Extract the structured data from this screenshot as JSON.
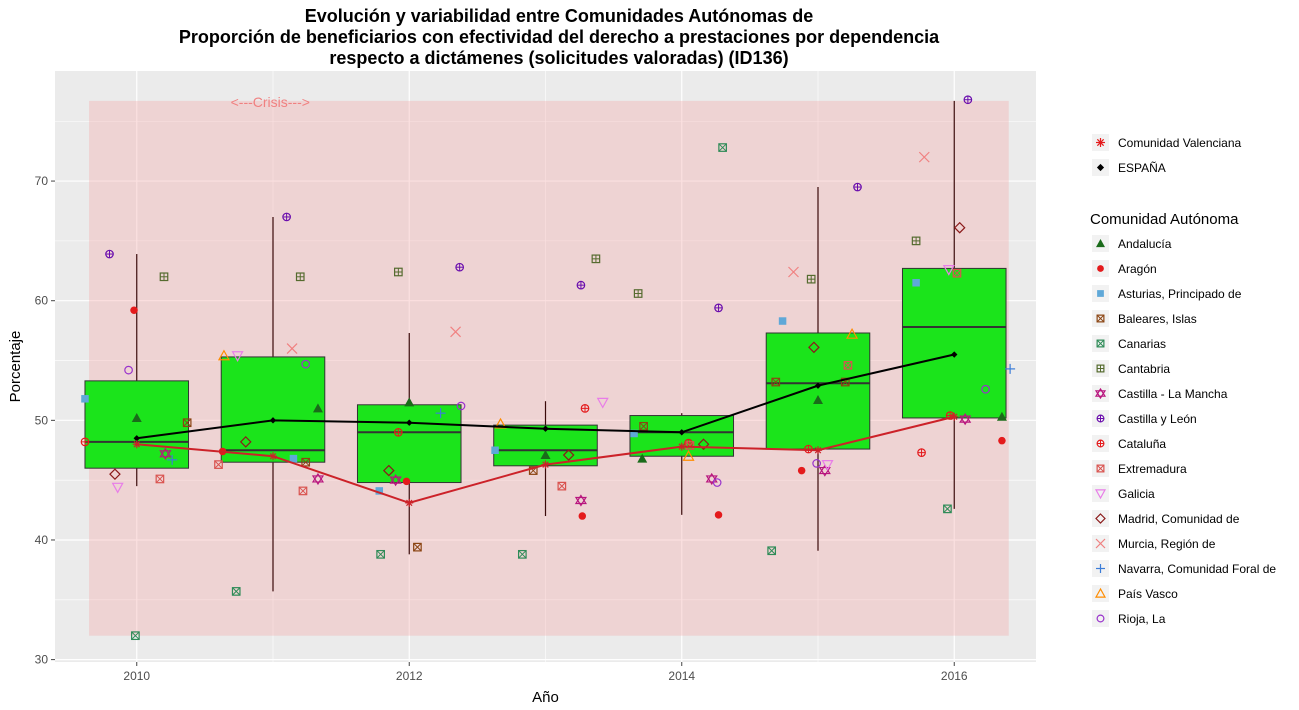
{
  "chart_data": {
    "type": "boxplot",
    "title": [
      "Evolución y variabilidad entre Comunidades Autónomas de",
      "Proporción de beneficiarios con efectividad del derecho a prestaciones por dependencia",
      "respecto a dictámenes (solicitudes valoradas) (ID136)"
    ],
    "xlabel": "Año",
    "ylabel": "Porcentaje",
    "xlim": [
      2009.4,
      2016.6
    ],
    "ylim": [
      29.8,
      79.2
    ],
    "x_ticks": [
      2010,
      2012,
      2014,
      2016
    ],
    "y_ticks": [
      30,
      40,
      50,
      60,
      70
    ],
    "grid": true,
    "annotation": {
      "text": "<---Crisis--->",
      "band_x": [
        2009.65,
        2016.4
      ],
      "band_y": [
        32,
        76.7
      ],
      "color": "#F08080"
    },
    "legend_position": "right",
    "legend_overlay_title": "",
    "legend_overlay": [
      {
        "name": "Comunidad Valenciana",
        "shape": "star",
        "color": "#e41a1c"
      },
      {
        "name": "ESPAÑA",
        "shape": "diamond-filled",
        "color": "#000000"
      }
    ],
    "legend_title": "Comunidad Autónoma",
    "boxes": [
      {
        "year": 2010,
        "min": 44.5,
        "q1": 46.0,
        "median": 48.2,
        "q3": 53.3,
        "max": 63.9
      },
      {
        "year": 2011,
        "min": 35.7,
        "q1": 46.5,
        "median": 47.5,
        "q3": 55.3,
        "max": 67.0
      },
      {
        "year": 2012,
        "min": 38.8,
        "q1": 44.8,
        "median": 49.0,
        "q3": 51.3,
        "max": 57.3
      },
      {
        "year": 2013,
        "min": 42.0,
        "q1": 46.2,
        "median": 47.5,
        "q3": 49.6,
        "max": 51.6
      },
      {
        "year": 2014,
        "min": 42.1,
        "q1": 47.0,
        "median": 49.0,
        "q3": 50.4,
        "max": 50.6
      },
      {
        "year": 2015,
        "min": 39.1,
        "q1": 47.6,
        "median": 53.1,
        "q3": 57.3,
        "max": 69.5
      },
      {
        "year": 2016,
        "min": 42.6,
        "q1": 50.2,
        "median": 57.8,
        "q3": 62.7,
        "max": 76.7
      }
    ],
    "line_series": [
      {
        "name": "ESPAÑA",
        "color": "#000000",
        "x": [
          2010,
          2011,
          2012,
          2013,
          2014,
          2015,
          2016
        ],
        "y": [
          48.5,
          50.0,
          49.8,
          49.3,
          49.0,
          52.9,
          55.5
        ]
      },
      {
        "name": "Comunidad Valenciana",
        "color": "#cc2229",
        "x": [
          2010,
          2011,
          2012,
          2013,
          2014,
          2015,
          2016
        ],
        "y": [
          48.0,
          47.0,
          43.1,
          46.3,
          47.8,
          47.5,
          50.3
        ]
      }
    ],
    "series": [
      {
        "name": "Andalucía",
        "shape": "triangle-filled",
        "color": "#1a6b1a",
        "points": [
          [
            2010,
            50.2
          ],
          [
            2011.33,
            51.0
          ],
          [
            2012,
            51.5
          ],
          [
            2013,
            47.1
          ],
          [
            2013.71,
            46.8
          ],
          [
            2015,
            51.7
          ],
          [
            2016.35,
            50.3
          ]
        ]
      },
      {
        "name": "Aragón",
        "shape": "circle-filled",
        "color": "#e41a1c",
        "points": [
          [
            2009.98,
            59.2
          ],
          [
            2010.63,
            47.4
          ],
          [
            2011.98,
            44.9
          ],
          [
            2013.27,
            42.0
          ],
          [
            2014.27,
            42.1
          ],
          [
            2014.88,
            45.8
          ],
          [
            2016.35,
            48.3
          ]
        ]
      },
      {
        "name": "Asturias, Principado de",
        "shape": "square-filled",
        "color": "#5fa8d8",
        "points": [
          [
            2009.62,
            51.8
          ],
          [
            2011.15,
            46.8
          ],
          [
            2011.78,
            44.1
          ],
          [
            2012.63,
            47.5
          ],
          [
            2013.65,
            48.9
          ],
          [
            2014.74,
            58.3
          ],
          [
            2015.72,
            61.5
          ]
        ]
      },
      {
        "name": "Baleares, Islas",
        "shape": "square-x",
        "color": "#8b4513",
        "points": [
          [
            2010.37,
            49.8
          ],
          [
            2011.24,
            46.5
          ],
          [
            2012.06,
            39.4
          ],
          [
            2012.91,
            45.8
          ],
          [
            2013.72,
            49.5
          ],
          [
            2014.69,
            53.2
          ],
          [
            2015.2,
            53.2
          ]
        ]
      },
      {
        "name": "Canarias",
        "shape": "square-x",
        "color": "#2e8b57",
        "points": [
          [
            2009.99,
            32.0
          ],
          [
            2010.73,
            35.7
          ],
          [
            2011.79,
            38.8
          ],
          [
            2012.83,
            38.8
          ],
          [
            2014.3,
            72.8
          ],
          [
            2014.66,
            39.1
          ],
          [
            2015.95,
            42.6
          ]
        ]
      },
      {
        "name": "Cantabria",
        "shape": "square-plus",
        "color": "#556b2f",
        "points": [
          [
            2010.2,
            62.0
          ],
          [
            2011.2,
            62.0
          ],
          [
            2011.92,
            62.4
          ],
          [
            2013.37,
            63.5
          ],
          [
            2013.68,
            60.6
          ],
          [
            2014.95,
            61.8
          ],
          [
            2015.72,
            65.0
          ]
        ]
      },
      {
        "name": "Castilla - La Mancha",
        "shape": "hexagram",
        "color": "#b8157e",
        "points": [
          [
            2010.21,
            47.2
          ],
          [
            2011.33,
            45.1
          ],
          [
            2011.9,
            45.0
          ],
          [
            2013.26,
            43.3
          ],
          [
            2014.22,
            45.1
          ],
          [
            2015.05,
            45.8
          ],
          [
            2016.08,
            50.1
          ]
        ]
      },
      {
        "name": "Castilla y León",
        "shape": "circle-plus",
        "color": "#6a0dad",
        "points": [
          [
            2009.8,
            63.9
          ],
          [
            2011.1,
            67.0
          ],
          [
            2012.37,
            62.8
          ],
          [
            2013.26,
            61.3
          ],
          [
            2014.27,
            59.4
          ],
          [
            2015.29,
            69.5
          ],
          [
            2016.1,
            76.8
          ]
        ]
      },
      {
        "name": "Cataluña",
        "shape": "circle-plus",
        "color": "#e41a1c",
        "points": [
          [
            2009.62,
            48.2
          ],
          [
            2011.92,
            49.0
          ],
          [
            2013.29,
            51.0
          ],
          [
            2014.05,
            48.1
          ],
          [
            2014.93,
            47.6
          ],
          [
            2015.97,
            50.4
          ],
          [
            2015.76,
            47.3
          ]
        ]
      },
      {
        "name": "Extremadura",
        "shape": "square-x",
        "color": "#d9534f",
        "points": [
          [
            2010.17,
            45.1
          ],
          [
            2011.22,
            44.1
          ],
          [
            2010.6,
            46.3
          ],
          [
            2013.12,
            44.5
          ],
          [
            2014.06,
            47.9
          ],
          [
            2015.22,
            54.6
          ],
          [
            2016.02,
            62.3
          ]
        ]
      },
      {
        "name": "Galicia",
        "shape": "triangle-down",
        "color": "#e87de8",
        "points": [
          [
            2009.86,
            44.4
          ],
          [
            2010.74,
            55.4
          ],
          [
            2013.42,
            51.5
          ],
          [
            2015.07,
            46.3
          ],
          [
            2015.96,
            62.6
          ]
        ]
      },
      {
        "name": "Madrid, Comunidad de",
        "shape": "diamond",
        "color": "#8b1a1a",
        "points": [
          [
            2009.84,
            45.5
          ],
          [
            2010.8,
            48.2
          ],
          [
            2011.85,
            45.8
          ],
          [
            2013.17,
            47.1
          ],
          [
            2014.16,
            48.0
          ],
          [
            2014.97,
            56.1
          ],
          [
            2016.04,
            66.1
          ]
        ]
      },
      {
        "name": "Murcia, Región de",
        "shape": "x",
        "color": "#f08080",
        "points": [
          [
            2011.14,
            56.0
          ],
          [
            2012.34,
            57.4
          ],
          [
            2014.82,
            62.4
          ],
          [
            2015.78,
            72.0
          ]
        ]
      },
      {
        "name": "Navarra, Comunidad Foral de",
        "shape": "plus",
        "color": "#3b7dd8",
        "points": [
          [
            2010.26,
            46.7
          ],
          [
            2012.23,
            50.6
          ],
          [
            2016.41,
            54.3
          ]
        ]
      },
      {
        "name": "País Vasco",
        "shape": "triangle",
        "color": "#ff8c00",
        "points": [
          [
            2010.64,
            55.4
          ],
          [
            2012.67,
            49.7
          ],
          [
            2014.05,
            47.0
          ],
          [
            2015.25,
            57.2
          ]
        ]
      },
      {
        "name": "Rioja, La",
        "shape": "circle",
        "color": "#9932cc",
        "points": [
          [
            2009.94,
            54.2
          ],
          [
            2011.24,
            54.7
          ],
          [
            2012.38,
            51.2
          ],
          [
            2014.26,
            44.8
          ],
          [
            2014.99,
            46.4
          ],
          [
            2016.23,
            52.6
          ]
        ]
      }
    ]
  }
}
